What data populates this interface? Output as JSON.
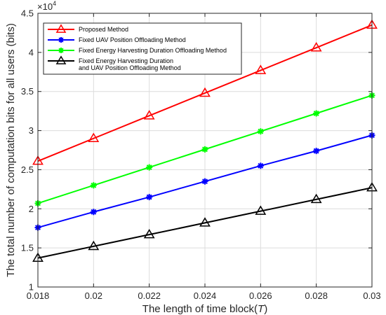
{
  "chart_data": {
    "type": "line",
    "xlabel": "The length of time block(",
    "xlabel_var": "T",
    "xlabel_close": ")",
    "ylabel": "The total number of computation bits for all users (bits)",
    "y_multiplier_base": "×10",
    "y_multiplier_exp": "4",
    "x": [
      0.018,
      0.02,
      0.022,
      0.024,
      0.026,
      0.028,
      0.03
    ],
    "xlim": [
      0.018,
      0.03
    ],
    "ylim": [
      1,
      4.5
    ],
    "x_ticks": [
      "0.018",
      "0.02",
      "0.022",
      "0.024",
      "0.026",
      "0.028",
      "0.03"
    ],
    "y_ticks": [
      "1",
      "1.5",
      "2",
      "2.5",
      "3",
      "3.5",
      "4",
      "4.5"
    ],
    "grid": true,
    "legend_position": "top-left",
    "series": [
      {
        "name": "Proposed Method",
        "color": "#ff0000",
        "marker": "triangle-open",
        "values": [
          2.61,
          2.9,
          3.19,
          3.48,
          3.77,
          4.06,
          4.35
        ]
      },
      {
        "name": "Fixed UAV Position Offloading Method",
        "color": "#0000ff",
        "marker": "asterisk",
        "values": [
          1.76,
          1.96,
          2.15,
          2.35,
          2.55,
          2.74,
          2.94
        ]
      },
      {
        "name": "Fixed Energy Harvesting Duration Offloading Method",
        "color": "#00ff00",
        "marker": "asterisk",
        "values": [
          2.07,
          2.3,
          2.53,
          2.76,
          2.99,
          3.22,
          3.45
        ]
      },
      {
        "name": "Fixed Energy Harvesting Duration",
        "name_line2": "and UAV Position Offloading Method",
        "color": "#000000",
        "marker": "triangle-open",
        "values": [
          1.37,
          1.52,
          1.67,
          1.82,
          1.97,
          2.12,
          2.27
        ]
      }
    ]
  }
}
